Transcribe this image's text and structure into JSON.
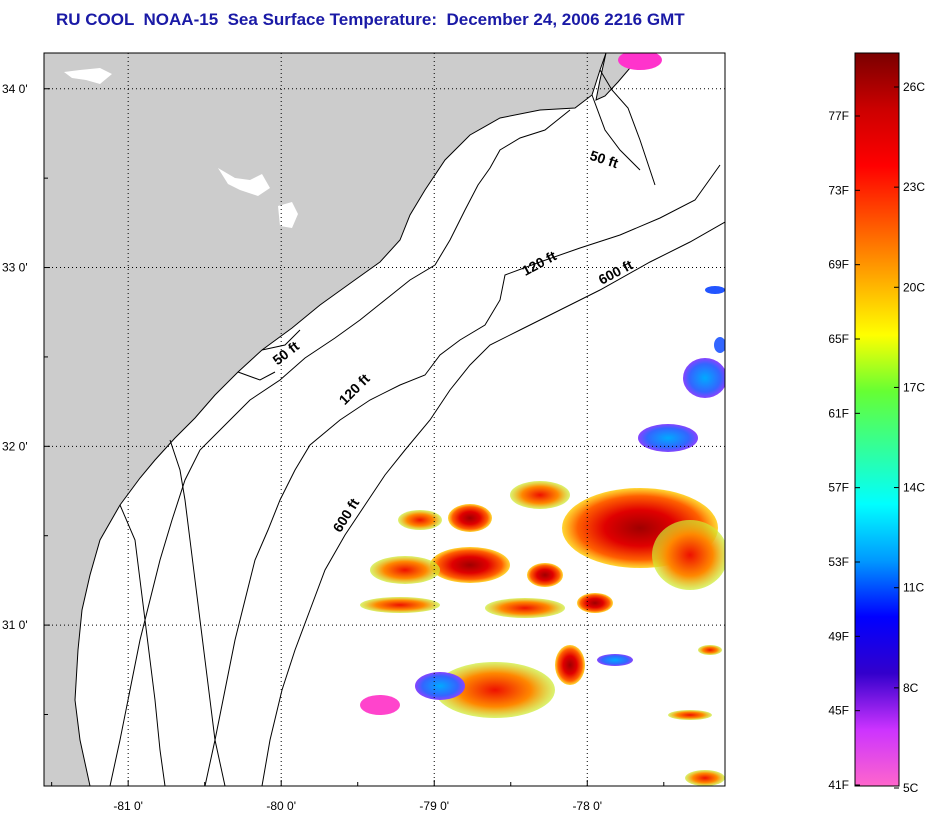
{
  "title": "RU COOL  NOAA-15  Sea Surface Temperature:  December 24, 2006 2216 GMT",
  "map": {
    "lon_range": [
      -81.55,
      -77.1
    ],
    "lat_range": [
      30.1,
      34.2
    ],
    "lon_ticks": [
      {
        "value": -81,
        "label": "-81 0'"
      },
      {
        "value": -80,
        "label": "-80 0'"
      },
      {
        "value": -79,
        "label": "-79 0'"
      },
      {
        "value": -78,
        "label": "-78 0'"
      }
    ],
    "lat_ticks": [
      {
        "value": 34,
        "label": "34 0'"
      },
      {
        "value": 33,
        "label": "33 0'"
      },
      {
        "value": 32,
        "label": "32 0'"
      },
      {
        "value": 31,
        "label": "31 0'"
      }
    ],
    "land_color": "#cccccc",
    "contour_labels": [
      {
        "text": "50 ft",
        "lon": -77.9,
        "lat": 33.58,
        "angle": 18
      },
      {
        "text": "120 ft",
        "lon": -78.3,
        "lat": 33.0,
        "angle": -28
      },
      {
        "text": "600 ft",
        "lon": -77.8,
        "lat": 32.95,
        "angle": -28
      },
      {
        "text": "50 ft",
        "lon": -79.95,
        "lat": 32.5,
        "angle": -38
      },
      {
        "text": "120 ft",
        "lon": -79.5,
        "lat": 32.3,
        "angle": -45
      },
      {
        "text": "600 ft",
        "lon": -79.55,
        "lat": 31.6,
        "angle": -58
      }
    ]
  },
  "colorbar": {
    "f_labels": [
      "77F",
      "73F",
      "69F",
      "65F",
      "61F",
      "57F",
      "53F",
      "49F",
      "45F",
      "41F"
    ],
    "c_labels": [
      "26C",
      "23C",
      "20C",
      "17C",
      "14C",
      "11C",
      "8C",
      "5C"
    ],
    "stops": [
      "#ff66cc",
      "#cc33ff",
      "#3300cc",
      "#0000ff",
      "#0099ff",
      "#00ffff",
      "#33ff99",
      "#66ff33",
      "#ffff00",
      "#ffaa00",
      "#ff5500",
      "#ff0000",
      "#cc0000",
      "#7a0000"
    ]
  }
}
